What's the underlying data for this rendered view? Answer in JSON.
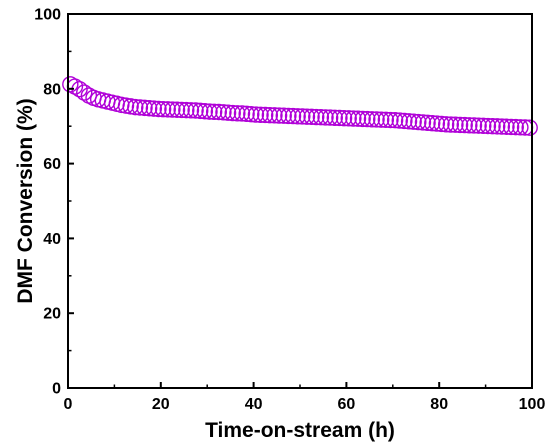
{
  "chart_data": {
    "type": "scatter",
    "title": "",
    "xlabel": "Time-on-stream (h)",
    "ylabel": "DMF Conversion (%)",
    "xlim": [
      0,
      100
    ],
    "ylim": [
      0,
      100
    ],
    "x_ticks": [
      "0",
      "20",
      "40",
      "60",
      "80",
      "100"
    ],
    "y_ticks": [
      "0",
      "20",
      "40",
      "60",
      "80",
      "100"
    ],
    "grid": false,
    "legend": "none",
    "marker": "open-circle",
    "marker_color": "#b000d8",
    "series": [
      {
        "x": [
          0.5,
          1.5,
          2.5,
          3.5,
          4.5,
          5.5,
          6.5,
          7.5,
          8.5,
          9.5,
          10.5,
          11.5,
          12.5,
          13.5,
          14.5,
          15.5,
          16.5,
          17.5,
          18.5,
          19.5,
          20.5,
          21.5,
          22.5,
          23.5,
          24.5,
          25.5,
          26.5,
          27.5,
          28.5,
          29.5,
          30.5,
          31.5,
          32.5,
          33.5,
          34.5,
          35.5,
          36.5,
          37.5,
          38.5,
          39.5,
          40.5,
          41.5,
          42.5,
          43.5,
          44.5,
          45.5,
          46.5,
          47.5,
          48.5,
          49.5,
          50.5,
          51.5,
          52.5,
          53.5,
          54.5,
          55.5,
          56.5,
          57.5,
          58.5,
          59.5,
          60.5,
          61.5,
          62.5,
          63.5,
          64.5,
          65.5,
          66.5,
          67.5,
          68.5,
          69.5,
          70.5,
          71.5,
          72.5,
          73.5,
          74.5,
          75.5,
          76.5,
          77.5,
          78.5,
          79.5,
          80.5,
          81.5,
          82.5,
          83.5,
          84.5,
          85.5,
          86.5,
          87.5,
          88.5,
          89.5,
          90.5,
          91.5,
          92.5,
          93.5,
          94.5,
          95.5,
          96.5,
          97.5,
          98.5,
          99.5
        ],
        "y": [
          81.2,
          80.6,
          79.9,
          79.0,
          78.2,
          77.6,
          77.2,
          76.9,
          76.6,
          76.3,
          76.0,
          75.7,
          75.5,
          75.3,
          75.1,
          75.0,
          74.9,
          74.8,
          74.7,
          74.6,
          74.55,
          74.5,
          74.45,
          74.4,
          74.35,
          74.3,
          74.25,
          74.2,
          74.1,
          74.0,
          73.9,
          73.85,
          73.8,
          73.7,
          73.6,
          73.5,
          73.45,
          73.4,
          73.3,
          73.2,
          73.1,
          73.05,
          73.0,
          72.95,
          72.9,
          72.85,
          72.8,
          72.75,
          72.7,
          72.65,
          72.6,
          72.55,
          72.5,
          72.45,
          72.4,
          72.35,
          72.3,
          72.25,
          72.2,
          72.15,
          72.1,
          72.05,
          72.0,
          71.95,
          71.9,
          71.85,
          71.8,
          71.75,
          71.7,
          71.65,
          71.6,
          71.5,
          71.4,
          71.3,
          71.2,
          71.1,
          71.0,
          70.9,
          70.8,
          70.7,
          70.6,
          70.5,
          70.45,
          70.4,
          70.35,
          70.3,
          70.25,
          70.2,
          70.15,
          70.1,
          70.05,
          70.0,
          69.95,
          69.9,
          69.85,
          69.8,
          69.75,
          69.7,
          69.65,
          69.6
        ]
      }
    ]
  }
}
